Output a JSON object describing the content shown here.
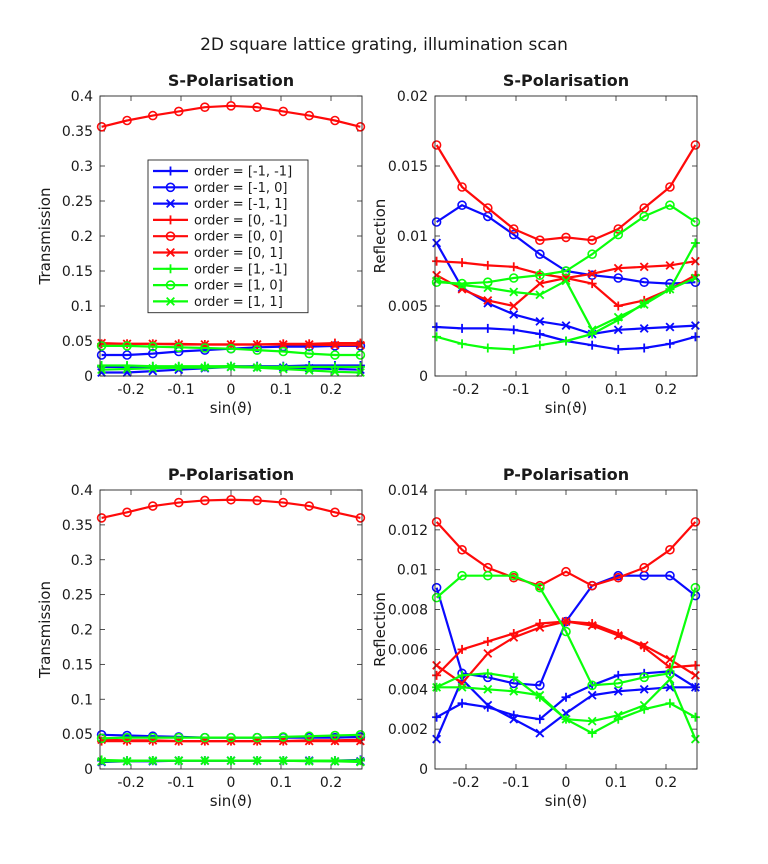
{
  "figure": {
    "title": "2D square lattice grating, illumination scan"
  },
  "colors": {
    "blue": "#0a0aff",
    "red": "#ff0a0a",
    "green": "#0aff0a",
    "axis": "#262626"
  },
  "chart_data": [
    {
      "type": "line",
      "title": "S-Polarisation",
      "xlabel": "sin(ϑ)",
      "ylabel": "Transmission",
      "xlim": [
        -0.262,
        0.262
      ],
      "ylim": [
        0,
        0.4
      ],
      "xticks": [
        -0.2,
        -0.1,
        0,
        0.1,
        0.2
      ],
      "xtick_labels": [
        "-0.2",
        "-0.1",
        "0",
        "0.1",
        "0.2"
      ],
      "yticks": [
        0,
        0.05,
        0.1,
        0.15,
        0.2,
        0.25,
        0.3,
        0.35,
        0.4
      ],
      "ytick_labels": [
        "0",
        "0.05",
        "0.1",
        "0.15",
        "0.2",
        "0.25",
        "0.3",
        "0.35",
        "0.4"
      ],
      "x": [
        -0.2588,
        -0.2079,
        -0.1564,
        -0.1045,
        -0.0523,
        0,
        0.0523,
        0.1045,
        0.1564,
        0.2079,
        0.2588
      ],
      "legend": {
        "location": "inside upper-left",
        "entries": [
          "order = [-1, -1]",
          "order = [-1, 0]",
          "order = [-1, 1]",
          "order = [0, -1]",
          "order = [0, 0]",
          "order = [0, 1]",
          "order = [1, -1]",
          "order = [1, 0]",
          "order = [1, 1]"
        ]
      },
      "series": [
        {
          "name": "order = [-1, -1]",
          "color": "blue",
          "marker": "plus",
          "values": [
            0.013,
            0.013,
            0.013,
            0.013,
            0.013,
            0.014,
            0.014,
            0.014,
            0.015,
            0.015,
            0.015
          ]
        },
        {
          "name": "order = [-1, 0]",
          "color": "blue",
          "marker": "circle",
          "values": [
            0.03,
            0.03,
            0.032,
            0.035,
            0.037,
            0.039,
            0.041,
            0.042,
            0.042,
            0.043,
            0.043
          ]
        },
        {
          "name": "order = [-1, 1]",
          "color": "blue",
          "marker": "cross",
          "values": [
            0.005,
            0.005,
            0.007,
            0.009,
            0.011,
            0.013,
            0.012,
            0.012,
            0.011,
            0.01,
            0.009
          ]
        },
        {
          "name": "order = [0, -1]",
          "color": "red",
          "marker": "plus",
          "values": [
            0.046,
            0.046,
            0.046,
            0.046,
            0.045,
            0.045,
            0.045,
            0.046,
            0.046,
            0.047,
            0.047
          ]
        },
        {
          "name": "order = [0, 0]",
          "color": "red",
          "marker": "circle",
          "values": [
            0.356,
            0.365,
            0.372,
            0.378,
            0.384,
            0.386,
            0.384,
            0.378,
            0.372,
            0.365,
            0.356
          ]
        },
        {
          "name": "order = [0, 1]",
          "color": "red",
          "marker": "cross",
          "values": [
            0.047,
            0.046,
            0.046,
            0.045,
            0.045,
            0.045,
            0.045,
            0.045,
            0.045,
            0.044,
            0.044
          ]
        },
        {
          "name": "order = [1, -1]",
          "color": "green",
          "marker": "plus",
          "values": [
            0.015,
            0.015,
            0.014,
            0.014,
            0.014,
            0.014,
            0.013,
            0.013,
            0.013,
            0.013,
            0.013
          ]
        },
        {
          "name": "order = [1, 0]",
          "color": "green",
          "marker": "circle",
          "values": [
            0.043,
            0.043,
            0.042,
            0.041,
            0.04,
            0.039,
            0.037,
            0.035,
            0.032,
            0.03,
            0.03
          ]
        },
        {
          "name": "order = [1, 1]",
          "color": "green",
          "marker": "cross",
          "values": [
            0.009,
            0.01,
            0.011,
            0.012,
            0.012,
            0.013,
            0.012,
            0.01,
            0.008,
            0.006,
            0.005
          ]
        }
      ]
    },
    {
      "type": "line",
      "title": "S-Polarisation",
      "xlabel": "sin(ϑ)",
      "ylabel": "Reflection",
      "xlim": [
        -0.262,
        0.262
      ],
      "ylim": [
        0,
        0.02
      ],
      "xticks": [
        -0.2,
        -0.1,
        0,
        0.1,
        0.2
      ],
      "xtick_labels": [
        "-0.2",
        "-0.1",
        "0",
        "0.1",
        "0.2"
      ],
      "yticks": [
        0,
        0.005,
        0.01,
        0.015,
        0.02
      ],
      "ytick_labels": [
        "0",
        "0.005",
        "0.01",
        "0.015",
        "0.02"
      ],
      "x": [
        -0.2588,
        -0.2079,
        -0.1564,
        -0.1045,
        -0.0523,
        0,
        0.0523,
        0.1045,
        0.1564,
        0.2079,
        0.2588
      ],
      "series": [
        {
          "name": "order = [-1, -1]",
          "color": "blue",
          "marker": "plus",
          "values": [
            0.0035,
            0.0034,
            0.0034,
            0.0033,
            0.003,
            0.0025,
            0.0022,
            0.0019,
            0.002,
            0.0023,
            0.0028
          ]
        },
        {
          "name": "order = [-1, 0]",
          "color": "blue",
          "marker": "circle",
          "values": [
            0.011,
            0.0122,
            0.0114,
            0.0101,
            0.0087,
            0.0075,
            0.0072,
            0.007,
            0.0067,
            0.0066,
            0.0067
          ]
        },
        {
          "name": "order = [-1, 1]",
          "color": "blue",
          "marker": "cross",
          "values": [
            0.0095,
            0.0063,
            0.0052,
            0.0044,
            0.0039,
            0.0036,
            0.003,
            0.0033,
            0.0034,
            0.0035,
            0.0036
          ]
        },
        {
          "name": "order = [0, -1]",
          "color": "red",
          "marker": "plus",
          "values": [
            0.0082,
            0.0081,
            0.0079,
            0.0078,
            0.0073,
            0.007,
            0.0066,
            0.005,
            0.0054,
            0.0062,
            0.0072
          ]
        },
        {
          "name": "order = [0, 0]",
          "color": "red",
          "marker": "circle",
          "values": [
            0.0165,
            0.0135,
            0.012,
            0.0105,
            0.0097,
            0.0099,
            0.0097,
            0.0105,
            0.012,
            0.0135,
            0.0165
          ]
        },
        {
          "name": "order = [0, 1]",
          "color": "red",
          "marker": "cross",
          "values": [
            0.0072,
            0.0062,
            0.0054,
            0.005,
            0.0066,
            0.007,
            0.0073,
            0.0077,
            0.0078,
            0.0079,
            0.0082
          ]
        },
        {
          "name": "order = [1, -1]",
          "color": "green",
          "marker": "plus",
          "values": [
            0.0028,
            0.0023,
            0.002,
            0.0019,
            0.0022,
            0.0025,
            0.003,
            0.004,
            0.0052,
            0.0062,
            0.0095
          ]
        },
        {
          "name": "order = [1, 0]",
          "color": "green",
          "marker": "circle",
          "values": [
            0.0067,
            0.0066,
            0.0067,
            0.007,
            0.0072,
            0.0075,
            0.0087,
            0.0101,
            0.0114,
            0.0122,
            0.011
          ]
        },
        {
          "name": "order = [1, 1]",
          "color": "green",
          "marker": "cross",
          "values": [
            0.0068,
            0.0065,
            0.0063,
            0.006,
            0.0058,
            0.0068,
            0.0033,
            0.0042,
            0.0051,
            0.0062,
            0.007
          ]
        }
      ]
    },
    {
      "type": "line",
      "title": "P-Polarisation",
      "xlabel": "sin(ϑ)",
      "ylabel": "Transmission",
      "xlim": [
        -0.262,
        0.262
      ],
      "ylim": [
        0,
        0.4
      ],
      "xticks": [
        -0.2,
        -0.1,
        0,
        0.1,
        0.2
      ],
      "xtick_labels": [
        "-0.2",
        "-0.1",
        "0",
        "0.1",
        "0.2"
      ],
      "yticks": [
        0,
        0.05,
        0.1,
        0.15,
        0.2,
        0.25,
        0.3,
        0.35,
        0.4
      ],
      "ytick_labels": [
        "0",
        "0.05",
        "0.1",
        "0.15",
        "0.2",
        "0.25",
        "0.3",
        "0.35",
        "0.4"
      ],
      "x": [
        -0.2588,
        -0.2079,
        -0.1564,
        -0.1045,
        -0.0523,
        0,
        0.0523,
        0.1045,
        0.1564,
        0.2079,
        0.2588
      ],
      "series": [
        {
          "name": "order = [-1, -1]",
          "color": "blue",
          "marker": "plus",
          "values": [
            0.012,
            0.012,
            0.012,
            0.012,
            0.012,
            0.012,
            0.012,
            0.012,
            0.012,
            0.012,
            0.013
          ]
        },
        {
          "name": "order = [-1, 0]",
          "color": "blue",
          "marker": "circle",
          "values": [
            0.049,
            0.048,
            0.047,
            0.046,
            0.045,
            0.045,
            0.045,
            0.045,
            0.045,
            0.045,
            0.046
          ]
        },
        {
          "name": "order = [-1, 1]",
          "color": "blue",
          "marker": "cross",
          "values": [
            0.01,
            0.011,
            0.011,
            0.012,
            0.012,
            0.012,
            0.012,
            0.012,
            0.012,
            0.011,
            0.011
          ]
        },
        {
          "name": "order = [0, -1]",
          "color": "red",
          "marker": "plus",
          "values": [
            0.04,
            0.04,
            0.04,
            0.04,
            0.04,
            0.04,
            0.04,
            0.04,
            0.041,
            0.041,
            0.042
          ]
        },
        {
          "name": "order = [0, 0]",
          "color": "red",
          "marker": "circle",
          "values": [
            0.36,
            0.368,
            0.377,
            0.382,
            0.385,
            0.386,
            0.385,
            0.382,
            0.377,
            0.368,
            0.36
          ]
        },
        {
          "name": "order = [0, 1]",
          "color": "red",
          "marker": "cross",
          "values": [
            0.042,
            0.041,
            0.041,
            0.04,
            0.04,
            0.04,
            0.04,
            0.04,
            0.04,
            0.04,
            0.04
          ]
        },
        {
          "name": "order = [1, -1]",
          "color": "green",
          "marker": "plus",
          "values": [
            0.013,
            0.012,
            0.012,
            0.012,
            0.012,
            0.012,
            0.012,
            0.012,
            0.012,
            0.012,
            0.012
          ]
        },
        {
          "name": "order = [1, 0]",
          "color": "green",
          "marker": "circle",
          "values": [
            0.044,
            0.045,
            0.045,
            0.045,
            0.045,
            0.045,
            0.045,
            0.046,
            0.047,
            0.048,
            0.049
          ]
        },
        {
          "name": "order = [1, 1]",
          "color": "green",
          "marker": "cross",
          "values": [
            0.011,
            0.011,
            0.012,
            0.012,
            0.012,
            0.012,
            0.012,
            0.012,
            0.011,
            0.011,
            0.01
          ]
        }
      ]
    },
    {
      "type": "line",
      "title": "P-Polarisation",
      "xlabel": "sin(ϑ)",
      "ylabel": "Reflection",
      "xlim": [
        -0.262,
        0.262
      ],
      "ylim": [
        0,
        0.014
      ],
      "xticks": [
        -0.2,
        -0.1,
        0,
        0.1,
        0.2
      ],
      "xtick_labels": [
        "-0.2",
        "-0.1",
        "0",
        "0.1",
        "0.2"
      ],
      "yticks": [
        0,
        0.002,
        0.004,
        0.006,
        0.008,
        0.01,
        0.012,
        0.014
      ],
      "ytick_labels": [
        "0",
        "0.002",
        "0.004",
        "0.006",
        "0.008",
        "0.01",
        "0.012",
        "0.014"
      ],
      "x": [
        -0.2588,
        -0.2079,
        -0.1564,
        -0.1045,
        -0.0523,
        0,
        0.0523,
        0.1045,
        0.1564,
        0.2079,
        0.2588
      ],
      "series": [
        {
          "name": "order = [-1, -1]",
          "color": "blue",
          "marker": "plus",
          "values": [
            0.0026,
            0.0033,
            0.0031,
            0.0027,
            0.0025,
            0.0036,
            0.0042,
            0.0047,
            0.0048,
            0.0049,
            0.0041
          ]
        },
        {
          "name": "order = [-1, 0]",
          "color": "blue",
          "marker": "circle",
          "values": [
            0.0091,
            0.0048,
            0.0046,
            0.0043,
            0.0042,
            0.0074,
            0.0092,
            0.0097,
            0.0097,
            0.0097,
            0.0087
          ]
        },
        {
          "name": "order = [-1, 1]",
          "color": "blue",
          "marker": "cross",
          "values": [
            0.0015,
            0.0045,
            0.0032,
            0.0025,
            0.0018,
            0.0028,
            0.0037,
            0.0039,
            0.004,
            0.0041,
            0.0041
          ]
        },
        {
          "name": "order = [0, -1]",
          "color": "red",
          "marker": "plus",
          "values": [
            0.0047,
            0.006,
            0.0064,
            0.0068,
            0.0073,
            0.0074,
            0.0073,
            0.0068,
            0.0061,
            0.0051,
            0.0052
          ]
        },
        {
          "name": "order = [0, 0]",
          "color": "red",
          "marker": "circle",
          "values": [
            0.0124,
            0.011,
            0.0101,
            0.0096,
            0.0092,
            0.0099,
            0.0092,
            0.0096,
            0.0101,
            0.011,
            0.0124
          ]
        },
        {
          "name": "order = [0, 1]",
          "color": "red",
          "marker": "cross",
          "values": [
            0.0052,
            0.0043,
            0.0058,
            0.0066,
            0.0071,
            0.0074,
            0.0072,
            0.0067,
            0.0062,
            0.0055,
            0.0047
          ]
        },
        {
          "name": "order = [1, -1]",
          "color": "green",
          "marker": "plus",
          "values": [
            0.0041,
            0.0047,
            0.0048,
            0.0046,
            0.0036,
            0.0025,
            0.0018,
            0.0025,
            0.003,
            0.0033,
            0.0026
          ]
        },
        {
          "name": "order = [1, 0]",
          "color": "green",
          "marker": "circle",
          "values": [
            0.0086,
            0.0097,
            0.0097,
            0.0097,
            0.0091,
            0.0069,
            0.0042,
            0.0043,
            0.0046,
            0.0048,
            0.0091
          ]
        },
        {
          "name": "order = [1, 1]",
          "color": "green",
          "marker": "cross",
          "values": [
            0.0041,
            0.0041,
            0.004,
            0.0039,
            0.0037,
            0.0025,
            0.0024,
            0.0027,
            0.0032,
            0.0045,
            0.0015
          ]
        }
      ]
    }
  ]
}
